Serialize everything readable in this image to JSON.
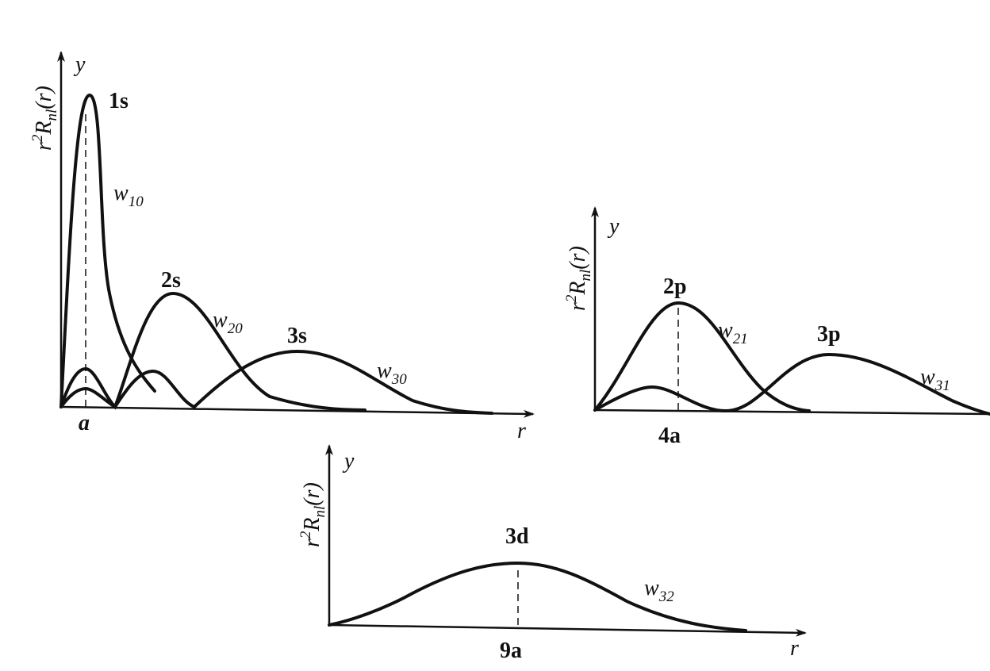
{
  "panels": [
    {
      "y_label": [
        "r",
        "2",
        "R",
        "nl",
        "(r)"
      ],
      "y_axis": "y",
      "x_axis": "r",
      "tick": "a",
      "curves": [
        {
          "label": "1s",
          "w": "w",
          "sub": "10"
        },
        {
          "label": "2s",
          "w": "w",
          "sub": "20"
        },
        {
          "label": "3s",
          "w": "w",
          "sub": "30"
        }
      ]
    },
    {
      "y_label": [
        "r",
        "2",
        "R",
        "nl",
        "(r)"
      ],
      "y_axis": "y",
      "tick": "4a",
      "curves": [
        {
          "label": "2p",
          "w": "w",
          "sub": "21"
        },
        {
          "label": "3p",
          "w": "w",
          "sub": "31"
        }
      ]
    },
    {
      "y_label": [
        "r",
        "2",
        "R",
        "nl",
        "(r)"
      ],
      "y_axis": "y",
      "x_axis": "r",
      "tick": "9a",
      "curves": [
        {
          "label": "3d",
          "w": "w",
          "sub": "32"
        }
      ]
    }
  ]
}
